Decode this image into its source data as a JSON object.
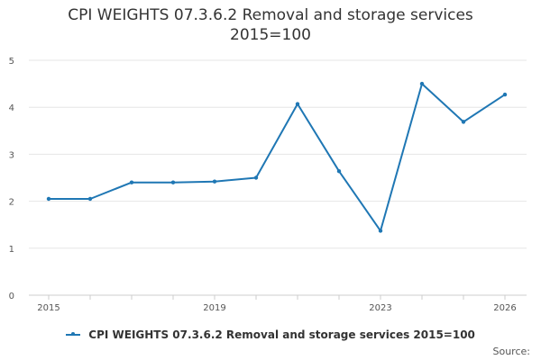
{
  "chart_data": {
    "type": "line",
    "title": "CPI WEIGHTS 07.3.6.2 Removal and storage services",
    "subtitle": "2015=100",
    "x": [
      2015,
      2016,
      2017,
      2018,
      2019,
      2020,
      2021,
      2022,
      2023,
      2024,
      2025,
      2026
    ],
    "series": [
      {
        "name": "CPI WEIGHTS 07.3.6.2 Removal and storage services 2015=100",
        "values": [
          2.05,
          2.05,
          2.4,
          2.4,
          2.42,
          2.5,
          4.07,
          2.64,
          1.37,
          4.5,
          3.69,
          4.27
        ],
        "color": "#1f77b4"
      }
    ],
    "xlim": [
      2015,
      2026
    ],
    "ylim": [
      0,
      5
    ],
    "x_tick_labels": [
      "2015",
      "2019",
      "2023",
      "2026"
    ],
    "y_tick_labels": [
      "0",
      "1",
      "2",
      "3",
      "4",
      "5"
    ],
    "grid": true,
    "legend": "bottom"
  },
  "source_label": "Source:"
}
